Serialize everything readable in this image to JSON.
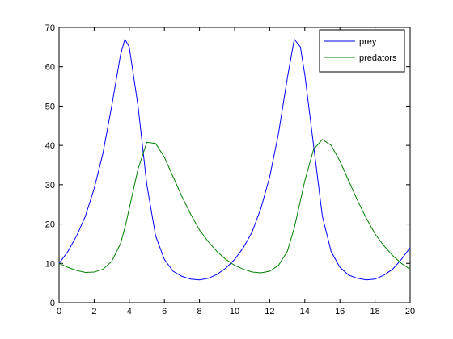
{
  "chart_data": {
    "type": "line",
    "x": [
      0,
      0.5,
      1,
      1.5,
      2,
      2.5,
      3,
      3.5,
      3.75,
      4,
      4.5,
      5,
      5.5,
      6,
      6.5,
      7,
      7.5,
      8,
      8.5,
      9,
      9.5,
      10,
      10.5,
      11,
      11.5,
      12,
      12.5,
      13,
      13.4,
      13.75,
      14,
      14.5,
      15,
      15.5,
      16,
      16.5,
      17,
      17.5,
      18,
      18.5,
      19,
      19.5,
      20
    ],
    "series": [
      {
        "name": "prey",
        "color": "#0000ff",
        "values": [
          10,
          13,
          17,
          22,
          29,
          38,
          50,
          63,
          67,
          65,
          50,
          30,
          17,
          11,
          8,
          6.7,
          6,
          5.8,
          6.2,
          7.2,
          8.8,
          11,
          14,
          18,
          24,
          32,
          43,
          57,
          67,
          65,
          58,
          40,
          22,
          13,
          9,
          7,
          6.2,
          5.8,
          6,
          7,
          8.5,
          11,
          14
        ]
      },
      {
        "name": "predators",
        "color": "#008000",
        "values": [
          10,
          9,
          8.2,
          7.7,
          7.8,
          8.5,
          10.5,
          15,
          19,
          24,
          34,
          40.8,
          40.5,
          37,
          32,
          27,
          22.5,
          18.5,
          15.5,
          13,
          11,
          9.5,
          8.5,
          7.8,
          7.6,
          8,
          9.5,
          13,
          19,
          26,
          31,
          39,
          41.5,
          40,
          36,
          31,
          26,
          21.5,
          17.5,
          14.5,
          12,
          10,
          8.5
        ]
      }
    ],
    "xlim": [
      0,
      20
    ],
    "xticks": [
      0,
      2,
      4,
      6,
      8,
      10,
      12,
      14,
      16,
      18,
      20
    ],
    "ylim": [
      0,
      70
    ],
    "yticks": [
      0,
      10,
      20,
      30,
      40,
      50,
      60,
      70
    ],
    "grid": false,
    "legend": "northeast"
  }
}
